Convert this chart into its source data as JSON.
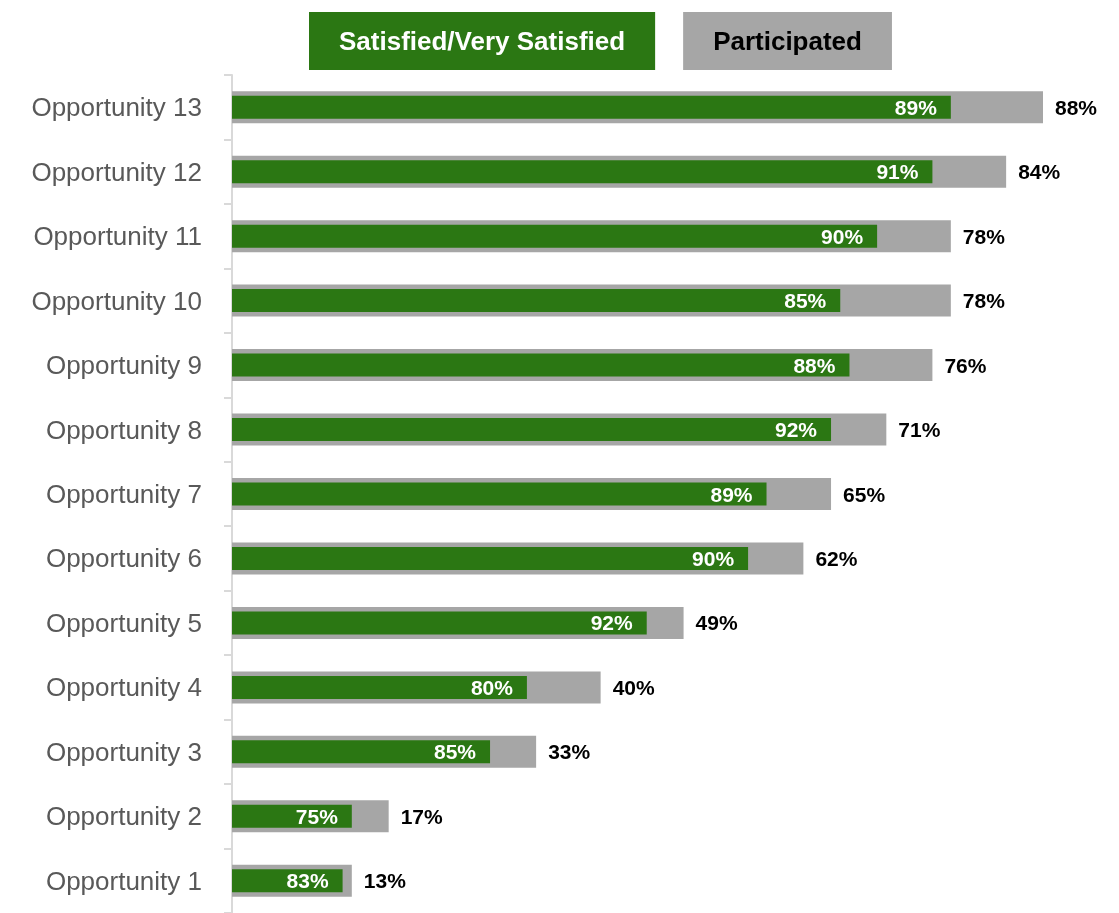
{
  "chart_data": {
    "type": "bar",
    "orientation": "horizontal",
    "legend": "top",
    "categories": [
      "Opportunity 13",
      "Opportunity 12",
      "Opportunity 11",
      "Opportunity 10",
      "Opportunity 9",
      "Opportunity 8",
      "Opportunity 7",
      "Opportunity 6",
      "Opportunity 5",
      "Opportunity 4",
      "Opportunity 3",
      "Opportunity 2",
      "Opportunity 1"
    ],
    "series": [
      {
        "name": "Satisfied/Very Satisfied",
        "color": "#2b7713",
        "values": [
          78,
          76,
          70,
          66,
          67,
          65,
          58,
          56,
          45,
          32,
          28,
          13,
          12
        ]
      },
      {
        "name": "Participated",
        "color": "#a6a6a6",
        "values": [
          88,
          84,
          78,
          78,
          76,
          71,
          65,
          62,
          49,
          40,
          33,
          17,
          13
        ],
        "value_labels": [
          "88%",
          "84%",
          "78%",
          "78%",
          "76%",
          "71%",
          "65%",
          "62%",
          "49%",
          "40%",
          "33%",
          "17%",
          "13%"
        ]
      }
    ],
    "annotations": [
      {
        "text": "89%",
        "x": 78,
        "y": "Opportunity 13"
      },
      {
        "text": "91%",
        "x": 76,
        "y": "Opportunity 12"
      },
      {
        "text": "90%",
        "x": 70,
        "y": "Opportunity 11"
      },
      {
        "text": "85%",
        "x": 66,
        "y": "Opportunity 10"
      },
      {
        "text": "88%",
        "x": 67,
        "y": "Opportunity 9"
      },
      {
        "text": "92%",
        "x": 65,
        "y": "Opportunity 8"
      },
      {
        "text": "89%",
        "x": 58,
        "y": "Opportunity 7"
      },
      {
        "text": "90%",
        "x": 56,
        "y": "Opportunity 6"
      },
      {
        "text": "92%",
        "x": 45,
        "y": "Opportunity 5"
      },
      {
        "text": "80%",
        "x": 32,
        "y": "Opportunity 4"
      },
      {
        "text": "85%",
        "x": 28,
        "y": "Opportunity 3"
      },
      {
        "text": "75%",
        "x": 13,
        "y": "Opportunity 2"
      },
      {
        "text": "83%",
        "x": 12,
        "y": "Opportunity 1"
      }
    ]
  }
}
